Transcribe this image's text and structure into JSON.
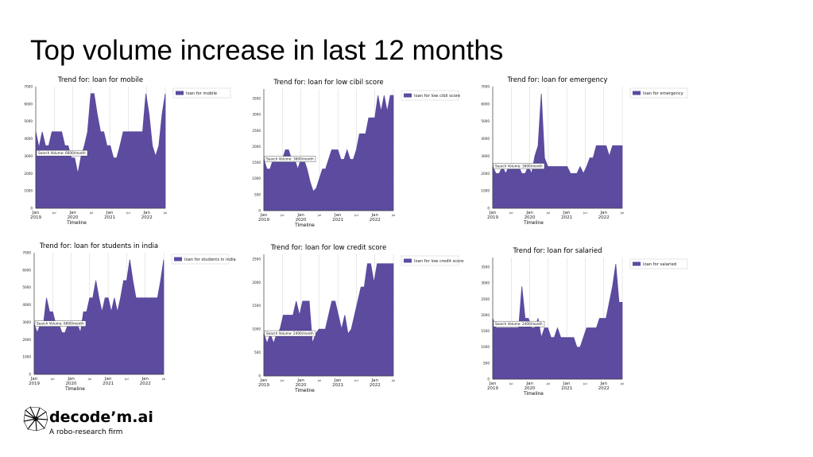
{
  "page_title": "Top volume increase in last 12 months",
  "brand": {
    "name": "decode’m.ai",
    "tagline": "A robo-research firm"
  },
  "colors": {
    "area": "#5c4b9f",
    "grid": "#d8d8d8"
  },
  "chart_data": [
    {
      "type": "area",
      "title": "Trend for: loan for mobile",
      "xlabel": "Timeline",
      "ylabel": "",
      "legend": "loan for mobile",
      "legend_position": "right",
      "annotation": "Search Volume: 6600/month",
      "ylim": [
        0,
        7000
      ],
      "yticks": [
        0,
        1000,
        2000,
        3000,
        4000,
        5000,
        6000,
        7000
      ],
      "xticks": [
        {
          "t": 0,
          "label": "Jan\n2019"
        },
        {
          "t": 6,
          "label": "Jul"
        },
        {
          "t": 12,
          "label": "Jan\n2020"
        },
        {
          "t": 18,
          "label": "Jul"
        },
        {
          "t": 24,
          "label": "Jan\n2021"
        },
        {
          "t": 30,
          "label": "Jul"
        },
        {
          "t": 36,
          "label": "Jan\n2022"
        },
        {
          "t": 42,
          "label": "Jul"
        }
      ],
      "series": [
        {
          "values": [
            4400,
            3500,
            4400,
            3600,
            3600,
            4400,
            4400,
            4400,
            4400,
            3600,
            3600,
            2900,
            2900,
            2000,
            3000,
            3600,
            4400,
            6600,
            6600,
            5400,
            4400,
            4400,
            3600,
            3600,
            2900,
            2900,
            3600,
            4400,
            4400,
            4400,
            4400,
            4400,
            4400,
            4400,
            6600,
            5400,
            3600,
            3000,
            3600,
            5400,
            6600
          ]
        }
      ]
    },
    {
      "type": "area",
      "title": "Trend for: loan for low cibil score",
      "xlabel": "Timeline",
      "ylabel": "",
      "legend": "loan for low cibil score",
      "legend_position": "right",
      "annotation": "Search Volume: 3600/month",
      "ylim": [
        0,
        3800
      ],
      "yticks": [
        0,
        500,
        1000,
        1500,
        2000,
        2500,
        3000,
        3500
      ],
      "xticks": [
        {
          "t": 0,
          "label": "Jan\n2019"
        },
        {
          "t": 6,
          "label": "Jul"
        },
        {
          "t": 12,
          "label": "Jan\n2020"
        },
        {
          "t": 18,
          "label": "Jul"
        },
        {
          "t": 24,
          "label": "Jan\n2021"
        },
        {
          "t": 30,
          "label": "Jul"
        },
        {
          "t": 36,
          "label": "Jan\n2022"
        },
        {
          "t": 42,
          "label": "Jul"
        }
      ],
      "series": [
        {
          "values": [
            1600,
            1300,
            1300,
            1600,
            1600,
            1600,
            1600,
            1900,
            1900,
            1600,
            1600,
            1300,
            1600,
            1600,
            1300,
            900,
            600,
            700,
            1000,
            1300,
            1300,
            1600,
            1900,
            1900,
            1900,
            1600,
            1600,
            1900,
            1600,
            1600,
            1900,
            2400,
            2400,
            2400,
            2900,
            2900,
            2900,
            3600,
            3100,
            3600,
            3100,
            3600,
            3600
          ]
        }
      ]
    },
    {
      "type": "area",
      "title": "Trend for: loan for emergency",
      "xlabel": "Timeline",
      "ylabel": "",
      "legend": "loan for emergency",
      "legend_position": "right",
      "annotation": "Search Volume: 3600/month",
      "ylim": [
        0,
        7000
      ],
      "yticks": [
        0,
        1000,
        2000,
        3000,
        4000,
        5000,
        6000,
        7000
      ],
      "xticks": [
        {
          "t": 0,
          "label": "Jan\n2019"
        },
        {
          "t": 6,
          "label": "Jul"
        },
        {
          "t": 12,
          "label": "Jan\n2020"
        },
        {
          "t": 18,
          "label": "Jul"
        },
        {
          "t": 24,
          "label": "Jan\n2021"
        },
        {
          "t": 30,
          "label": "Jul"
        },
        {
          "t": 36,
          "label": "Jan\n2022"
        },
        {
          "t": 42,
          "label": "Jul"
        }
      ],
      "series": [
        {
          "values": [
            2400,
            2000,
            2000,
            2400,
            2000,
            2400,
            2400,
            2400,
            2400,
            2000,
            2000,
            2400,
            2000,
            3000,
            3600,
            6600,
            2900,
            2400,
            2400,
            2400,
            2400,
            2400,
            2400,
            2400,
            2000,
            2000,
            2000,
            2400,
            2000,
            2400,
            2900,
            2900,
            3600,
            3600,
            3600,
            3600,
            3000,
            3600,
            3600,
            3600,
            3600
          ]
        }
      ]
    },
    {
      "type": "area",
      "title": "Trend for: loan for students in india",
      "xlabel": "Timeline",
      "ylabel": "",
      "legend": "loan for students in india",
      "legend_position": "right",
      "annotation": "Search Volume: 6600/month",
      "ylim": [
        0,
        7000
      ],
      "yticks": [
        0,
        1000,
        2000,
        3000,
        4000,
        5000,
        6000,
        7000
      ],
      "xticks": [
        {
          "t": 0,
          "label": "Jan\n2019"
        },
        {
          "t": 6,
          "label": "Jul"
        },
        {
          "t": 12,
          "label": "Jan\n2020"
        },
        {
          "t": 18,
          "label": "Jul"
        },
        {
          "t": 24,
          "label": "Jan\n2021"
        },
        {
          "t": 30,
          "label": "Jul"
        },
        {
          "t": 36,
          "label": "Jan\n2022"
        },
        {
          "t": 42,
          "label": "Jul"
        }
      ],
      "series": [
        {
          "values": [
            2900,
            2400,
            2900,
            2900,
            4400,
            3600,
            3600,
            2900,
            2900,
            2400,
            2400,
            2900,
            2900,
            2900,
            2900,
            2400,
            3600,
            3600,
            4400,
            4400,
            5400,
            4400,
            3600,
            4400,
            4400,
            3600,
            4400,
            3600,
            4400,
            5400,
            5400,
            6600,
            5400,
            4400,
            4400,
            4400,
            4400,
            4400,
            4400,
            4400,
            4400,
            5400,
            6600
          ]
        }
      ]
    },
    {
      "type": "area",
      "title": "Trend for: loan for low credit score",
      "xlabel": "Timeline",
      "ylabel": "",
      "legend": "loan for low credit score",
      "legend_position": "right",
      "annotation": "Search Volume: 2400/month",
      "ylim": [
        0,
        2600
      ],
      "yticks": [
        0,
        500,
        1000,
        1500,
        2000,
        2500
      ],
      "xticks": [
        {
          "t": 0,
          "label": "Jan\n2019"
        },
        {
          "t": 6,
          "label": "Jul"
        },
        {
          "t": 12,
          "label": "Jan\n2020"
        },
        {
          "t": 18,
          "label": "Jul"
        },
        {
          "t": 24,
          "label": "Jan\n2021"
        },
        {
          "t": 30,
          "label": "Jul"
        },
        {
          "t": 36,
          "label": "Jan\n2022"
        },
        {
          "t": 42,
          "label": "Jul"
        }
      ],
      "series": [
        {
          "values": [
            900,
            700,
            900,
            700,
            900,
            1000,
            1300,
            1300,
            1300,
            1300,
            1600,
            1300,
            1600,
            1600,
            1600,
            700,
            900,
            1000,
            1000,
            1000,
            1300,
            1600,
            1600,
            1300,
            1000,
            1300,
            900,
            1000,
            1300,
            1600,
            1900,
            1900,
            2400,
            2400,
            2000,
            2400,
            2400,
            2400,
            2400,
            2400,
            2400
          ]
        }
      ]
    },
    {
      "type": "area",
      "title": "Trend for: loan for salaried",
      "xlabel": "Timeline",
      "ylabel": "",
      "legend": "loan for salaried",
      "legend_position": "right",
      "annotation": "Search Volume: 2400/month",
      "ylim": [
        0,
        3800
      ],
      "yticks": [
        0,
        500,
        1000,
        1500,
        2000,
        2500,
        3000,
        3500
      ],
      "xticks": [
        {
          "t": 0,
          "label": "Jan\n2019"
        },
        {
          "t": 6,
          "label": "Jul"
        },
        {
          "t": 12,
          "label": "Jan\n2020"
        },
        {
          "t": 18,
          "label": "Jul"
        },
        {
          "t": 24,
          "label": "Jan\n2021"
        },
        {
          "t": 30,
          "label": "Jul"
        },
        {
          "t": 36,
          "label": "Jan\n2022"
        },
        {
          "t": 42,
          "label": "Jul"
        }
      ],
      "series": [
        {
          "values": [
            1900,
            1600,
            1600,
            1600,
            1600,
            1600,
            1600,
            1600,
            1600,
            2900,
            1900,
            1900,
            1600,
            1600,
            1900,
            1300,
            1600,
            1600,
            1300,
            1300,
            1600,
            1300,
            1300,
            1300,
            1300,
            1300,
            1000,
            1000,
            1300,
            1600,
            1600,
            1600,
            1600,
            1900,
            1900,
            1900,
            2400,
            2900,
            3600,
            2400,
            2400
          ]
        }
      ]
    }
  ]
}
